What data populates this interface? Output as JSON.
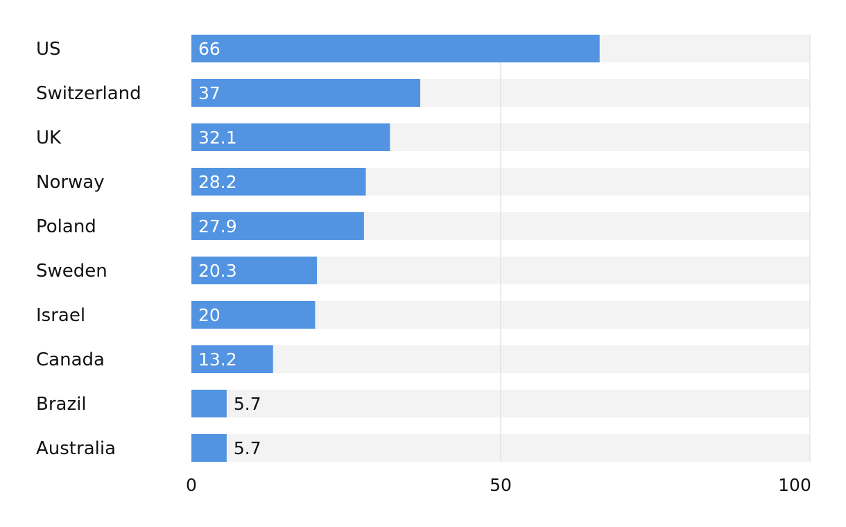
{
  "chart_data": {
    "type": "bar",
    "orientation": "horizontal",
    "categories": [
      "US",
      "Switzerland",
      "UK",
      "Norway",
      "Poland",
      "Sweden",
      "Israel",
      "Canada",
      "Brazil",
      "Australia"
    ],
    "values": [
      66,
      37,
      32.1,
      28.2,
      27.9,
      20.3,
      20,
      13.2,
      5.7,
      5.7
    ],
    "value_labels": [
      "66",
      "37",
      "32.1",
      "28.2",
      "27.9",
      "20.3",
      "20",
      "13.2",
      "5.7",
      "5.7"
    ],
    "xlim": [
      0,
      100
    ],
    "xticks": [
      "0",
      "50",
      "100"
    ],
    "title": "",
    "xlabel": "",
    "ylabel": "",
    "grid": true,
    "legend": "none",
    "colors": {
      "bar": "#5294e2",
      "track": "#f3f3f3",
      "gridline": "#d8d8d8",
      "label_inside": "#ffffff",
      "label_outside": "#111111"
    }
  }
}
